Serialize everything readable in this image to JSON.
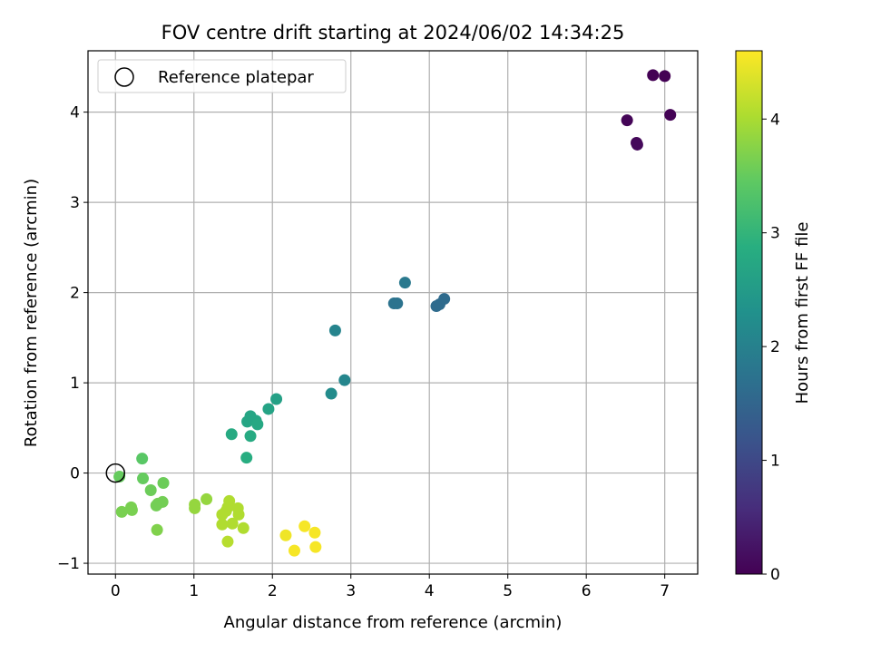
{
  "chart_data": {
    "type": "scatter",
    "title": "FOV centre drift starting at 2024/06/02 14:34:25",
    "xlabel": "Angular distance from reference (arcmin)",
    "ylabel": "Rotation from reference (arcmin)",
    "xlim": [
      -0.35,
      7.42
    ],
    "ylim": [
      -1.12,
      4.68
    ],
    "xticks": [
      "0",
      "1",
      "2",
      "3",
      "4",
      "5",
      "6",
      "7"
    ],
    "yticks": [
      "−1",
      "0",
      "1",
      "2",
      "3",
      "4"
    ],
    "grid": true,
    "legend": {
      "position": "top-left",
      "entries": [
        "Reference platepar"
      ]
    },
    "reference_point": {
      "x": 0,
      "y": 0
    },
    "colorbar": {
      "label": "Hours from first FF file",
      "range": [
        0,
        4.6
      ],
      "ticks": [
        "0",
        "1",
        "2",
        "3",
        "4"
      ],
      "colormap": "viridis"
    },
    "points": [
      {
        "x": 6.85,
        "y": 4.41,
        "t": 0.0
      },
      {
        "x": 7.0,
        "y": 4.4,
        "t": 0.0
      },
      {
        "x": 7.07,
        "y": 3.97,
        "t": 0.02
      },
      {
        "x": 6.52,
        "y": 3.91,
        "t": 0.05
      },
      {
        "x": 6.64,
        "y": 3.66,
        "t": 0.08
      },
      {
        "x": 6.65,
        "y": 3.64,
        "t": 0.1
      },
      {
        "x": 3.69,
        "y": 2.11,
        "t": 1.85
      },
      {
        "x": 3.55,
        "y": 1.88,
        "t": 1.75
      },
      {
        "x": 3.59,
        "y": 1.88,
        "t": 1.75
      },
      {
        "x": 4.19,
        "y": 1.93,
        "t": 1.6
      },
      {
        "x": 4.13,
        "y": 1.87,
        "t": 1.6
      },
      {
        "x": 4.09,
        "y": 1.85,
        "t": 1.6
      },
      {
        "x": 2.8,
        "y": 1.58,
        "t": 2.05
      },
      {
        "x": 2.92,
        "y": 1.03,
        "t": 2.1
      },
      {
        "x": 2.75,
        "y": 0.88,
        "t": 2.2
      },
      {
        "x": 2.05,
        "y": 0.82,
        "t": 2.6
      },
      {
        "x": 1.95,
        "y": 0.71,
        "t": 2.65
      },
      {
        "x": 1.72,
        "y": 0.63,
        "t": 2.7
      },
      {
        "x": 1.68,
        "y": 0.57,
        "t": 2.7
      },
      {
        "x": 1.79,
        "y": 0.58,
        "t": 2.7
      },
      {
        "x": 1.81,
        "y": 0.54,
        "t": 2.75
      },
      {
        "x": 1.48,
        "y": 0.43,
        "t": 2.8
      },
      {
        "x": 1.72,
        "y": 0.41,
        "t": 2.8
      },
      {
        "x": 1.67,
        "y": 0.17,
        "t": 2.85
      },
      {
        "x": 0.34,
        "y": 0.16,
        "t": 3.4
      },
      {
        "x": 0.05,
        "y": -0.04,
        "t": 3.5
      },
      {
        "x": 0.35,
        "y": -0.06,
        "t": 3.5
      },
      {
        "x": 0.61,
        "y": -0.11,
        "t": 3.55
      },
      {
        "x": 0.45,
        "y": -0.19,
        "t": 3.55
      },
      {
        "x": 0.6,
        "y": -0.32,
        "t": 3.6
      },
      {
        "x": 0.54,
        "y": -0.34,
        "t": 3.6
      },
      {
        "x": 0.52,
        "y": -0.36,
        "t": 3.6
      },
      {
        "x": 0.2,
        "y": -0.38,
        "t": 3.65
      },
      {
        "x": 0.21,
        "y": -0.41,
        "t": 3.65
      },
      {
        "x": 0.08,
        "y": -0.43,
        "t": 3.65
      },
      {
        "x": 0.53,
        "y": -0.63,
        "t": 3.7
      },
      {
        "x": 1.16,
        "y": -0.29,
        "t": 3.85
      },
      {
        "x": 1.01,
        "y": -0.35,
        "t": 3.85
      },
      {
        "x": 1.01,
        "y": -0.39,
        "t": 3.85
      },
      {
        "x": 1.45,
        "y": -0.31,
        "t": 4.05
      },
      {
        "x": 1.43,
        "y": -0.38,
        "t": 4.05
      },
      {
        "x": 1.56,
        "y": -0.39,
        "t": 4.05
      },
      {
        "x": 1.41,
        "y": -0.42,
        "t": 4.05
      },
      {
        "x": 1.36,
        "y": -0.46,
        "t": 4.05
      },
      {
        "x": 1.57,
        "y": -0.46,
        "t": 4.05
      },
      {
        "x": 1.36,
        "y": -0.57,
        "t": 4.05
      },
      {
        "x": 1.49,
        "y": -0.56,
        "t": 4.05
      },
      {
        "x": 1.63,
        "y": -0.61,
        "t": 4.05
      },
      {
        "x": 1.43,
        "y": -0.76,
        "t": 4.1
      },
      {
        "x": 2.17,
        "y": -0.69,
        "t": 4.5
      },
      {
        "x": 2.41,
        "y": -0.59,
        "t": 4.55
      },
      {
        "x": 2.54,
        "y": -0.66,
        "t": 4.55
      },
      {
        "x": 2.28,
        "y": -0.86,
        "t": 4.55
      },
      {
        "x": 2.55,
        "y": -0.82,
        "t": 4.55
      }
    ]
  }
}
